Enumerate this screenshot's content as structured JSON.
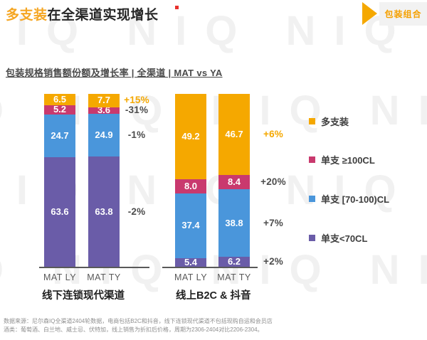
{
  "header": {
    "title_highlight": "多支装",
    "title_rest": "在全渠道实现增长",
    "badge_label": "包装组合"
  },
  "subtitle": "包装规格销售额份额及增长率 | 全渠道 | MAT vs YA",
  "watermark_text": "NIQ",
  "chart_data": {
    "type": "bar",
    "stacked": true,
    "title": "包装规格销售额份额及增长率 | 全渠道 | MAT vs YA",
    "value_unit": "share_percent",
    "ylim": [
      0,
      100
    ],
    "grid": false,
    "legend_position": "right",
    "series_bottom_to_top": [
      {
        "name": "单支<70CL",
        "color": "#6A5CA8"
      },
      {
        "name": "单支 [70-100)CL",
        "color": "#4A96DB"
      },
      {
        "name": "单支 ≥100CL",
        "color": "#C9396E"
      },
      {
        "name": "多支装",
        "color": "#F5A800"
      }
    ],
    "growth_highlight_series": "多支装",
    "growth_highlight_color": "#F5A800",
    "growth_default_color": "#4d4d4d",
    "groups": [
      {
        "label": "线下连锁现代渠道",
        "bars": [
          {
            "label": "MAT LY",
            "values": [
              63.6,
              24.7,
              5.2,
              6.5
            ]
          },
          {
            "label": "MAT TY",
            "values": [
              63.8,
              24.9,
              3.6,
              7.7
            ]
          }
        ],
        "growth_bottom_to_top": [
          "-2%",
          "-1%",
          "-31%",
          "+15%"
        ]
      },
      {
        "label": "线上B2C & 抖音",
        "bars": [
          {
            "label": "MAT LY",
            "values": [
              5.4,
              37.4,
              8.0,
              49.2
            ]
          },
          {
            "label": "MAT TY",
            "values": [
              6.2,
              38.8,
              8.4,
              46.7
            ]
          }
        ],
        "growth_bottom_to_top": [
          "+2%",
          "+7%",
          "+20%",
          "+6%"
        ]
      }
    ]
  },
  "legend": [
    {
      "label": "多支装",
      "color": "#F5A800"
    },
    {
      "label": "单支 ≥100CL",
      "color": "#C9396E"
    },
    {
      "label": "单支 [70-100)CL",
      "color": "#4A96DB"
    },
    {
      "label": "单支<70CL",
      "color": "#6A5CA8"
    }
  ],
  "footer": {
    "line1": "数据来源：尼尔森IQ全渠道2404轮数据，电商包括B2C和抖音，线下连锁现代渠道不包括现购自运和会员店",
    "line2": "酒类：葡萄酒、白兰地、威士忌、伏特加，线上销售为折扣后价格，周期为2306-2404对比2206-2304。"
  }
}
